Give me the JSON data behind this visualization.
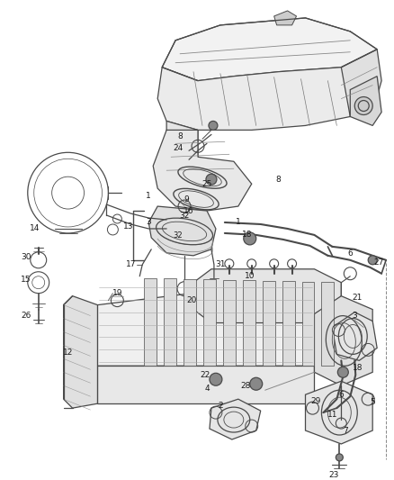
{
  "bg_color": "#ffffff",
  "line_color": "#4a4a4a",
  "label_color": "#1a1a1a",
  "figsize": [
    4.38,
    5.33
  ],
  "dpi": 100,
  "xlim": [
    0,
    438
  ],
  "ylim": [
    0,
    533
  ]
}
